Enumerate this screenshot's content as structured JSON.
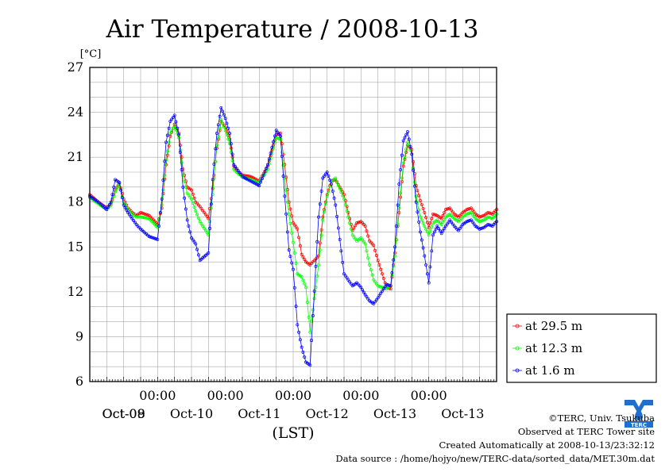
{
  "chart_data": {
    "type": "line",
    "title": "Air Temperature / 2008-10-13",
    "ylabel": "[°C]",
    "xlabel": "(LST)",
    "ylim": [
      6,
      27
    ],
    "yticks": [
      "6",
      "9",
      "12",
      "15",
      "18",
      "21",
      "24",
      "27"
    ],
    "xlim": [
      0,
      6
    ],
    "xticks": [
      {
        "x": 1,
        "time": "00:00",
        "date": "Oct-09"
      },
      {
        "x": 2,
        "time": "00:00",
        "date": "Oct-10"
      },
      {
        "x": 3,
        "time": "00:00",
        "date": "Oct-11"
      },
      {
        "x": 4,
        "time": "00:00",
        "date": "Oct-12"
      },
      {
        "x": 5,
        "time": "00:00",
        "date": "Oct-13"
      }
    ],
    "first_date": "Oct-08",
    "grid": true,
    "legend_position": "right",
    "series": [
      {
        "name": "at 29.5 m",
        "color": "#ff0000",
        "x": [
          0,
          0.125,
          0.25,
          0.3125,
          0.375,
          0.4375,
          0.5,
          0.5625,
          0.625,
          0.6875,
          0.75,
          0.875,
          1,
          1.0625,
          1.125,
          1.1875,
          1.25,
          1.3125,
          1.375,
          1.4375,
          1.5,
          1.5625,
          1.625,
          1.75,
          1.8125,
          1.875,
          1.9375,
          2,
          2.0625,
          2.125,
          2.1875,
          2.25,
          2.375,
          2.5,
          2.625,
          2.75,
          2.8125,
          2.875,
          2.9375,
          3,
          3.0625,
          3.125,
          3.1875,
          3.25,
          3.375,
          3.4375,
          3.5,
          3.5625,
          3.625,
          3.75,
          3.875,
          3.9375,
          4,
          4.0625,
          4.125,
          4.1875,
          4.25,
          4.375,
          4.4375,
          4.5,
          4.5625,
          4.625,
          4.6875,
          4.75,
          4.8125,
          4.875,
          4.9375,
          5,
          5.0625,
          5.125,
          5.1875,
          5.25,
          5.3125,
          5.375,
          5.4375,
          5.5,
          5.5625,
          5.625,
          5.6875,
          5.75,
          5.8125,
          5.875,
          5.9375,
          6
        ],
        "y": [
          18.5,
          18,
          17.6,
          17.9,
          18.8,
          19.3,
          18.2,
          17.6,
          17.3,
          17.1,
          17.3,
          17.1,
          16.5,
          17.6,
          20.5,
          22.4,
          23.2,
          22.6,
          20.2,
          19.0,
          18.8,
          18.0,
          17.7,
          16.9,
          18.9,
          21.6,
          23.4,
          23.0,
          22.2,
          20.4,
          20.0,
          19.8,
          19.7,
          19.4,
          20.4,
          22.5,
          22.6,
          20.5,
          18.0,
          16.6,
          16.2,
          14.5,
          14.0,
          13.8,
          14.4,
          17.0,
          18.5,
          19.4,
          19.5,
          18.5,
          16.1,
          16.6,
          16.7,
          16.4,
          15.4,
          15.1,
          14.1,
          12.3,
          12.2,
          14.6,
          17.3,
          20.4,
          21.8,
          21.5,
          19.1,
          18.1,
          17.3,
          16.3,
          17.2,
          17.1,
          16.9,
          17.5,
          17.6,
          17.2,
          17.0,
          17.3,
          17.5,
          17.6,
          17.2,
          17.0,
          17.1,
          17.3,
          17.2,
          17.5
        ]
      },
      {
        "name": "at 12.3 m",
        "color": "#00ff00",
        "x": [
          0,
          0.125,
          0.25,
          0.3125,
          0.375,
          0.4375,
          0.5,
          0.5625,
          0.625,
          0.6875,
          0.75,
          0.875,
          1,
          1.0625,
          1.125,
          1.1875,
          1.25,
          1.3125,
          1.375,
          1.4375,
          1.5,
          1.5625,
          1.625,
          1.75,
          1.8125,
          1.875,
          1.9375,
          2,
          2.0625,
          2.125,
          2.1875,
          2.25,
          2.375,
          2.5,
          2.625,
          2.75,
          2.8125,
          2.875,
          2.9375,
          3,
          3.0625,
          3.125,
          3.1875,
          3.25,
          3.375,
          3.4375,
          3.5,
          3.5625,
          3.625,
          3.75,
          3.875,
          3.9375,
          4,
          4.0625,
          4.125,
          4.1875,
          4.25,
          4.375,
          4.4375,
          4.5,
          4.5625,
          4.625,
          4.6875,
          4.75,
          4.8125,
          4.875,
          4.9375,
          5,
          5.0625,
          5.125,
          5.1875,
          5.25,
          5.3125,
          5.375,
          5.4375,
          5.5,
          5.5625,
          5.625,
          5.6875,
          5.75,
          5.8125,
          5.875,
          5.9375,
          6
        ],
        "y": [
          18.3,
          17.9,
          17.5,
          17.8,
          18.7,
          19.2,
          18.0,
          17.5,
          17.2,
          17.0,
          17.0,
          16.9,
          16.3,
          17.8,
          20.8,
          22.6,
          23.1,
          22.3,
          19.8,
          18.6,
          18.2,
          17.4,
          16.7,
          15.8,
          18.5,
          21.8,
          23.5,
          22.8,
          21.9,
          20.2,
          19.9,
          19.7,
          19.5,
          19.3,
          20.2,
          22.3,
          22.2,
          19.6,
          17.2,
          15.3,
          13.2,
          13.0,
          12.3,
          9.3,
          13.8,
          16.8,
          18.4,
          19.4,
          19.6,
          18.2,
          15.8,
          15.4,
          15.6,
          15.2,
          13.8,
          12.8,
          12.4,
          12.2,
          12.4,
          14.4,
          17.6,
          20.6,
          22.0,
          21.2,
          18.4,
          17.0,
          16.4,
          15.8,
          16.6,
          16.8,
          16.5,
          17.0,
          17.2,
          16.9,
          16.7,
          17.0,
          17.2,
          17.3,
          16.9,
          16.7,
          16.8,
          17.0,
          16.9,
          17.2
        ]
      },
      {
        "name": "at 1.6 m",
        "color": "#0000ff",
        "x": [
          0,
          0.125,
          0.25,
          0.3125,
          0.375,
          0.4375,
          0.5,
          0.5625,
          0.625,
          0.6875,
          0.75,
          0.875,
          1,
          1.0625,
          1.125,
          1.1875,
          1.25,
          1.3125,
          1.375,
          1.4375,
          1.5,
          1.5625,
          1.625,
          1.75,
          1.8125,
          1.875,
          1.9375,
          2,
          2.0625,
          2.125,
          2.1875,
          2.25,
          2.375,
          2.5,
          2.625,
          2.75,
          2.8125,
          2.875,
          2.9375,
          3,
          3.0625,
          3.125,
          3.1875,
          3.25,
          3.375,
          3.4375,
          3.5,
          3.5625,
          3.625,
          3.75,
          3.875,
          3.9375,
          4,
          4.0625,
          4.125,
          4.1875,
          4.25,
          4.375,
          4.4375,
          4.5,
          4.5625,
          4.625,
          4.6875,
          4.75,
          4.8125,
          4.875,
          4.9375,
          5,
          5.0625,
          5.125,
          5.1875,
          5.25,
          5.3125,
          5.375,
          5.4375,
          5.5,
          5.5625,
          5.625,
          5.6875,
          5.75,
          5.8125,
          5.875,
          5.9375,
          6
        ],
        "y": [
          18.4,
          18.0,
          17.5,
          18.0,
          19.5,
          19.3,
          17.8,
          17.3,
          16.9,
          16.5,
          16.2,
          15.7,
          15.5,
          18.2,
          22.0,
          23.4,
          23.8,
          22.5,
          19.0,
          16.8,
          15.6,
          15.2,
          14.1,
          14.6,
          19.5,
          22.6,
          24.3,
          23.6,
          22.6,
          20.5,
          20.1,
          19.7,
          19.4,
          19.1,
          20.5,
          22.8,
          22.4,
          18.4,
          14.8,
          13.5,
          9.8,
          8.3,
          7.3,
          7.1,
          17.0,
          19.6,
          20.0,
          19.2,
          17.8,
          13.2,
          12.4,
          12.6,
          12.3,
          11.8,
          11.4,
          11.2,
          11.6,
          12.5,
          12.4,
          15.0,
          19.2,
          22.1,
          22.7,
          21.2,
          18.0,
          16.0,
          14.4,
          12.6,
          15.8,
          16.4,
          15.9,
          16.4,
          16.8,
          16.4,
          16.1,
          16.5,
          16.7,
          16.8,
          16.4,
          16.2,
          16.3,
          16.5,
          16.4,
          16.7
        ]
      }
    ]
  },
  "footer": {
    "copyright": "©TERC, Univ. Tsukuba",
    "observed": "Observed at TERC Tower site",
    "created": "Created Automatically at 2008-10-13/23:32:12",
    "source": "Data source : /home/hojyo/new/TERC-data/sorted_data/MET.30m.dat"
  },
  "logo_text": "TERC"
}
